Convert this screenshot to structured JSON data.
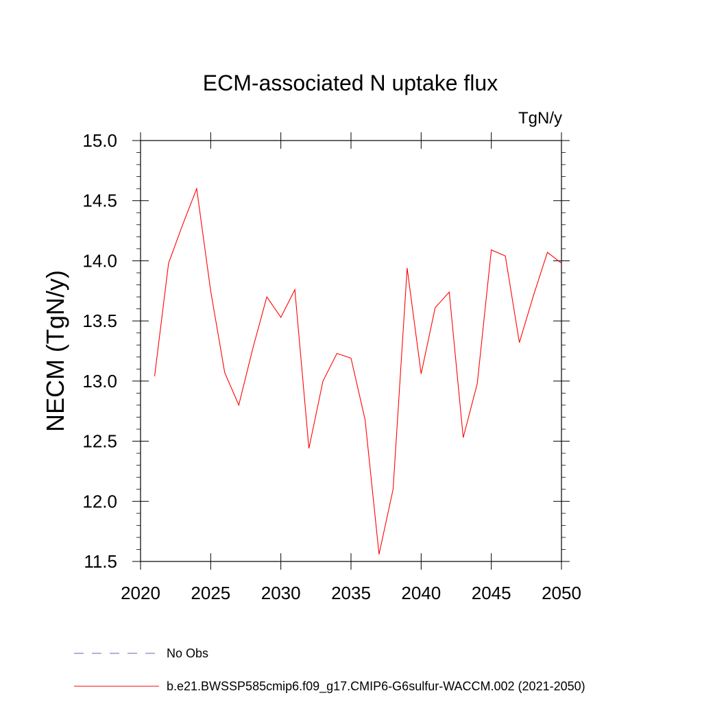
{
  "chart_data": {
    "type": "line",
    "title": "ECM-associated N uptake flux",
    "units_label": "TgN/y",
    "ylabel": "NECM  (TgN/y)",
    "xlabel": "",
    "xlim": [
      2020,
      2050
    ],
    "ylim": [
      11.5,
      15.0
    ],
    "x_ticks": [
      2020,
      2025,
      2030,
      2035,
      2040,
      2045,
      2050
    ],
    "y_ticks": [
      "11.5",
      "12.0",
      "12.5",
      "13.0",
      "13.5",
      "14.0",
      "14.5",
      "15.0"
    ],
    "grid": false,
    "legend_placement": "bottom",
    "series": [
      {
        "name": "b.e21.BWSSP585cmip6.f09_g17.CMIP6-G6sulfur-WACCM.002 (2021-2050)",
        "color": "#ff0000",
        "style": "solid",
        "x": [
          2021,
          2022,
          2023,
          2024,
          2025,
          2026,
          2027,
          2028,
          2029,
          2030,
          2031,
          2032,
          2033,
          2034,
          2035,
          2036,
          2037,
          2038,
          2039,
          2040,
          2041,
          2042,
          2043,
          2044,
          2045,
          2046,
          2047,
          2048,
          2049,
          2050
        ],
        "y": [
          13.04,
          13.98,
          14.3,
          14.6,
          13.75,
          13.07,
          12.8,
          13.27,
          13.7,
          13.53,
          13.76,
          12.44,
          13.0,
          13.23,
          13.19,
          12.68,
          11.56,
          12.1,
          13.94,
          13.06,
          13.61,
          13.74,
          12.53,
          12.98,
          14.09,
          14.04,
          13.32,
          13.71,
          14.07,
          13.98
        ]
      }
    ],
    "legend": [
      {
        "label": "No Obs",
        "color": "#6b5fb5",
        "style": "dashed"
      },
      {
        "label": "b.e21.BWSSP585cmip6.f09_g17.CMIP6-G6sulfur-WACCM.002 (2021-2050)",
        "color": "#ff0000",
        "style": "solid"
      }
    ]
  }
}
